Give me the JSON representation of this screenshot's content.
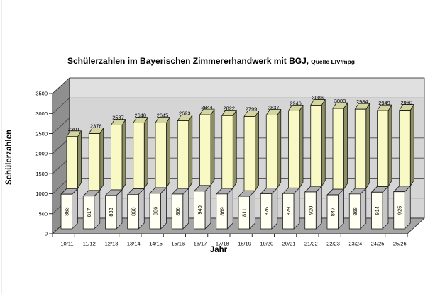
{
  "chart": {
    "title_main": "Schülerzahlen im Bayerischen Zimmererhandwerk mit BGJ,",
    "title_source": "Quelle LIV/mpg",
    "y_axis_title": "Schülerzahlen",
    "x_axis_title": "Jahr"
  },
  "chart_data": {
    "type": "bar",
    "subtype": "3d-stacked-column",
    "title": "Schülerzahlen im Bayerischen Zimmererhandwerk mit BGJ, Quelle LIV/mpg",
    "xlabel": "Jahr",
    "ylabel": "Schülerzahlen",
    "ylim": [
      0,
      3500
    ],
    "ytick_step": 500,
    "grid": "horizontal value gridlines on 3D back wall",
    "legend": "none",
    "categories": [
      "10/11",
      "11/12",
      "12/13",
      "13/14",
      "14/15",
      "15/16",
      "16/17",
      "17/18",
      "18/19",
      "19/20",
      "20/21",
      "21/22",
      "22/23",
      "23/24",
      "24/25",
      "25/26"
    ],
    "bottom_segment_values": [
      863,
      817,
      833,
      860,
      886,
      866,
      940,
      869,
      811,
      876,
      879,
      920,
      847,
      868,
      914,
      925
    ],
    "total_values": [
      2301,
      2376,
      2587,
      2640,
      2645,
      2693,
      2844,
      2822,
      2799,
      2837,
      2946,
      3086,
      3003,
      2984,
      2949,
      2960
    ],
    "colors": {
      "bottom_front": "#FFFFF2",
      "bottom_side": "#C6C6C6",
      "bottom_top": "#AFAFAF",
      "top_front": "#F9F9C5",
      "top_side": "#8E8E63",
      "top_top": "#D5D5A0",
      "back_wall": "#D5D5D5",
      "back_wall_upper_band": "#E0E0E0",
      "left_wall": "#8F8F8F",
      "floor": "#A5A5A5",
      "gridline": "#4A4A4A",
      "outline": "#1A1A1A",
      "text": "#000000"
    }
  }
}
